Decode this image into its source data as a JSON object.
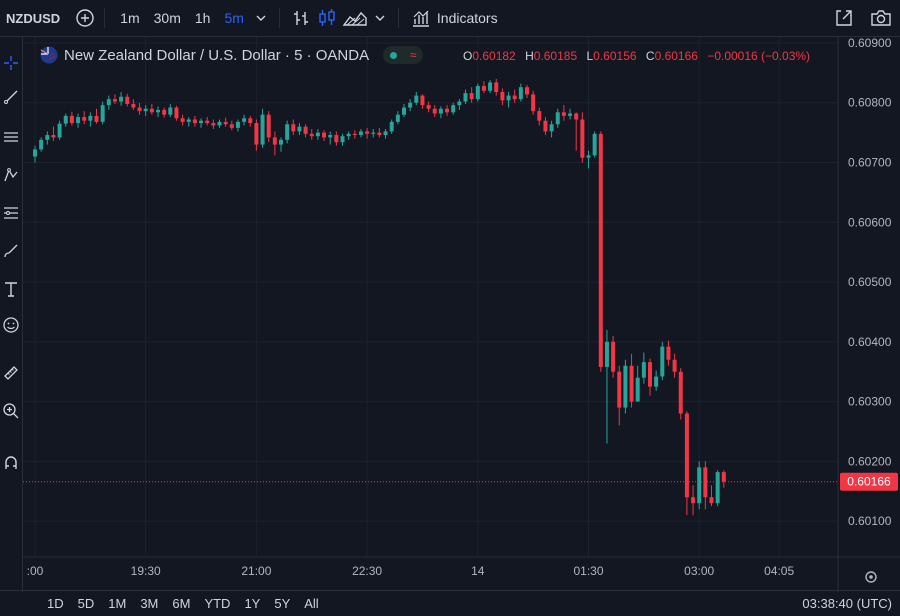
{
  "toolbar": {
    "symbol": "NZDUSD",
    "timeframes": [
      "1m",
      "30m",
      "1h",
      "5m"
    ],
    "active_timeframe": "5m",
    "indicators_label": "Indicators"
  },
  "legend": {
    "title": "New Zealand Dollar / U.S. Dollar · 5 · OANDA",
    "ohlc": [
      {
        "key": "O",
        "value": "0.60182"
      },
      {
        "key": "H",
        "value": "0.60185"
      },
      {
        "key": "L",
        "value": "0.60156"
      },
      {
        "key": "C",
        "value": "0.60166"
      },
      {
        "key": "",
        "value": "−0.00016 (−0.03%)"
      }
    ]
  },
  "bottom": {
    "ranges": [
      "1D",
      "5D",
      "1M",
      "3M",
      "6M",
      "YTD",
      "1Y",
      "5Y",
      "All"
    ],
    "clock": "03:38:40 (UTC)"
  },
  "colors": {
    "up": "#26a69a",
    "down": "#f23645",
    "background": "#131722",
    "grid": "#1e222d"
  },
  "chart_data": {
    "type": "candlestick",
    "ylim": [
      0.6004,
      0.6091
    ],
    "y_ticks": [
      "0.60100",
      "0.60200",
      "0.60300",
      "0.60400",
      "0.60500",
      "0.60600",
      "0.60700",
      "0.60800",
      "0.60900"
    ],
    "x_ticks": [
      {
        "label": ":00",
        "i": 0
      },
      {
        "label": "19:30",
        "i": 18
      },
      {
        "label": "21:00",
        "i": 36
      },
      {
        "label": "22:30",
        "i": 54
      },
      {
        "label": "14",
        "i": 72
      },
      {
        "label": "01:30",
        "i": 90
      },
      {
        "label": "03:00",
        "i": 108
      },
      {
        "label": "04:05",
        "i": 121
      }
    ],
    "last_price": "0.60166",
    "ohlc": [
      [
        0.6071,
        0.60728,
        0.607,
        0.60722
      ],
      [
        0.60722,
        0.60742,
        0.60718,
        0.60738
      ],
      [
        0.60738,
        0.60752,
        0.6073,
        0.60746
      ],
      [
        0.60746,
        0.6076,
        0.60736,
        0.60742
      ],
      [
        0.60742,
        0.6077,
        0.60738,
        0.60765
      ],
      [
        0.60765,
        0.60782,
        0.6076,
        0.60778
      ],
      [
        0.60778,
        0.60785,
        0.60762,
        0.60766
      ],
      [
        0.60766,
        0.60782,
        0.60758,
        0.60776
      ],
      [
        0.60776,
        0.60786,
        0.60764,
        0.6077
      ],
      [
        0.6077,
        0.60784,
        0.6076,
        0.60778
      ],
      [
        0.60778,
        0.6079,
        0.60765,
        0.60768
      ],
      [
        0.60768,
        0.60802,
        0.60764,
        0.60796
      ],
      [
        0.60796,
        0.60812,
        0.60788,
        0.60806
      ],
      [
        0.60806,
        0.60814,
        0.60798,
        0.60802
      ],
      [
        0.60802,
        0.60818,
        0.60795,
        0.6081
      ],
      [
        0.6081,
        0.60815,
        0.60794,
        0.60798
      ],
      [
        0.60798,
        0.60806,
        0.60788,
        0.60792
      ],
      [
        0.60792,
        0.608,
        0.6078,
        0.60786
      ],
      [
        0.60786,
        0.60796,
        0.60778,
        0.6079
      ],
      [
        0.6079,
        0.60798,
        0.6078,
        0.60784
      ],
      [
        0.60784,
        0.60794,
        0.60776,
        0.60788
      ],
      [
        0.60788,
        0.60792,
        0.60775,
        0.6078
      ],
      [
        0.6078,
        0.60798,
        0.60776,
        0.60792
      ],
      [
        0.60792,
        0.60795,
        0.6077,
        0.60774
      ],
      [
        0.60774,
        0.6078,
        0.60762,
        0.60768
      ],
      [
        0.60768,
        0.60776,
        0.6076,
        0.60772
      ],
      [
        0.60772,
        0.60778,
        0.6076,
        0.60766
      ],
      [
        0.60766,
        0.60774,
        0.60758,
        0.6077
      ],
      [
        0.6077,
        0.60776,
        0.60762,
        0.60766
      ],
      [
        0.60766,
        0.60772,
        0.60756,
        0.60762
      ],
      [
        0.60762,
        0.60772,
        0.60758,
        0.60768
      ],
      [
        0.60768,
        0.60775,
        0.6076,
        0.60764
      ],
      [
        0.60764,
        0.6077,
        0.60754,
        0.60758
      ],
      [
        0.60758,
        0.60772,
        0.60752,
        0.60768
      ],
      [
        0.60768,
        0.6078,
        0.60762,
        0.60774
      ],
      [
        0.60774,
        0.60778,
        0.6076,
        0.60766
      ],
      [
        0.60766,
        0.60772,
        0.6072,
        0.6073
      ],
      [
        0.6073,
        0.6079,
        0.60725,
        0.6078
      ],
      [
        0.6078,
        0.60786,
        0.60734,
        0.60742
      ],
      [
        0.60742,
        0.60752,
        0.60712,
        0.6073
      ],
      [
        0.6073,
        0.60742,
        0.60718,
        0.60738
      ],
      [
        0.60738,
        0.6077,
        0.60732,
        0.60764
      ],
      [
        0.60764,
        0.60772,
        0.60746,
        0.60752
      ],
      [
        0.60752,
        0.60766,
        0.60746,
        0.6076
      ],
      [
        0.6076,
        0.60764,
        0.60742,
        0.60748
      ],
      [
        0.60748,
        0.60756,
        0.60738,
        0.60744
      ],
      [
        0.60744,
        0.60756,
        0.60738,
        0.6075
      ],
      [
        0.6075,
        0.60754,
        0.60736,
        0.60742
      ],
      [
        0.60742,
        0.60752,
        0.6073,
        0.60746
      ],
      [
        0.60746,
        0.60752,
        0.60728,
        0.60734
      ],
      [
        0.60734,
        0.60748,
        0.60728,
        0.60744
      ],
      [
        0.60744,
        0.60752,
        0.60738,
        0.60748
      ],
      [
        0.60748,
        0.60754,
        0.6074,
        0.60746
      ],
      [
        0.60746,
        0.60756,
        0.60742,
        0.60752
      ],
      [
        0.60752,
        0.60758,
        0.6074,
        0.60748
      ],
      [
        0.60748,
        0.60756,
        0.60742,
        0.6075
      ],
      [
        0.6075,
        0.60758,
        0.60742,
        0.60746
      ],
      [
        0.60746,
        0.60756,
        0.6074,
        0.60752
      ],
      [
        0.60752,
        0.60772,
        0.60748,
        0.60768
      ],
      [
        0.60768,
        0.60786,
        0.60764,
        0.6078
      ],
      [
        0.6078,
        0.60798,
        0.60776,
        0.60792
      ],
      [
        0.60792,
        0.60806,
        0.60786,
        0.608
      ],
      [
        0.608,
        0.60818,
        0.60796,
        0.60812
      ],
      [
        0.60812,
        0.60814,
        0.6079,
        0.60796
      ],
      [
        0.60796,
        0.60802,
        0.60784,
        0.6079
      ],
      [
        0.6079,
        0.60796,
        0.60776,
        0.60782
      ],
      [
        0.60782,
        0.60794,
        0.60774,
        0.6079
      ],
      [
        0.6079,
        0.60796,
        0.60778,
        0.60784
      ],
      [
        0.60784,
        0.608,
        0.6078,
        0.60796
      ],
      [
        0.60796,
        0.60806,
        0.60788,
        0.60802
      ],
      [
        0.60802,
        0.60822,
        0.60798,
        0.60816
      ],
      [
        0.60816,
        0.60826,
        0.608,
        0.60806
      ],
      [
        0.60806,
        0.60832,
        0.60802,
        0.60828
      ],
      [
        0.60828,
        0.60836,
        0.60816,
        0.6082
      ],
      [
        0.6082,
        0.60838,
        0.60816,
        0.60834
      ],
      [
        0.60834,
        0.6084,
        0.60812,
        0.60818
      ],
      [
        0.60818,
        0.60824,
        0.60796,
        0.60804
      ],
      [
        0.60804,
        0.60818,
        0.60792,
        0.60812
      ],
      [
        0.60812,
        0.60822,
        0.608,
        0.60806
      ],
      [
        0.60806,
        0.60832,
        0.60802,
        0.60826
      ],
      [
        0.60826,
        0.6083,
        0.60808,
        0.60814
      ],
      [
        0.60814,
        0.6082,
        0.6078,
        0.60786
      ],
      [
        0.60786,
        0.60792,
        0.60762,
        0.6077
      ],
      [
        0.6077,
        0.60776,
        0.60746,
        0.60752
      ],
      [
        0.60752,
        0.6077,
        0.60742,
        0.60764
      ],
      [
        0.60764,
        0.6079,
        0.60758,
        0.60784
      ],
      [
        0.60784,
        0.60796,
        0.6077,
        0.60778
      ],
      [
        0.60778,
        0.6079,
        0.60772,
        0.60782
      ],
      [
        0.60782,
        0.60784,
        0.6072,
        0.60772
      ],
      [
        0.60772,
        0.60784,
        0.607,
        0.60708
      ],
      [
        0.60708,
        0.6072,
        0.6069,
        0.60712
      ],
      [
        0.60712,
        0.60752,
        0.60708,
        0.60748
      ],
      [
        0.60748,
        0.60752,
        0.6035,
        0.60358
      ],
      [
        0.60358,
        0.6042,
        0.6023,
        0.604
      ],
      [
        0.604,
        0.6041,
        0.6034,
        0.6035
      ],
      [
        0.6035,
        0.6036,
        0.6026,
        0.6029
      ],
      [
        0.6029,
        0.6037,
        0.6028,
        0.6036
      ],
      [
        0.6036,
        0.6038,
        0.6029,
        0.603
      ],
      [
        0.603,
        0.6036,
        0.603,
        0.6034
      ],
      [
        0.6034,
        0.60382,
        0.6033,
        0.60366
      ],
      [
        0.60366,
        0.60372,
        0.6031,
        0.60325
      ],
      [
        0.60325,
        0.60352,
        0.60318,
        0.60342
      ],
      [
        0.60342,
        0.604,
        0.60336,
        0.60392
      ],
      [
        0.60392,
        0.60402,
        0.6036,
        0.6037
      ],
      [
        0.6037,
        0.6038,
        0.6034,
        0.6035
      ],
      [
        0.6035,
        0.60356,
        0.6027,
        0.6028
      ],
      [
        0.6028,
        0.60284,
        0.6011,
        0.6014
      ],
      [
        0.6014,
        0.6016,
        0.6011,
        0.6013
      ],
      [
        0.6013,
        0.602,
        0.6012,
        0.6019
      ],
      [
        0.6019,
        0.602,
        0.6012,
        0.6014
      ],
      [
        0.6014,
        0.6016,
        0.60125,
        0.6013
      ],
      [
        0.6013,
        0.60185,
        0.60125,
        0.60182
      ],
      [
        0.60182,
        0.60185,
        0.60156,
        0.60166
      ]
    ]
  }
}
